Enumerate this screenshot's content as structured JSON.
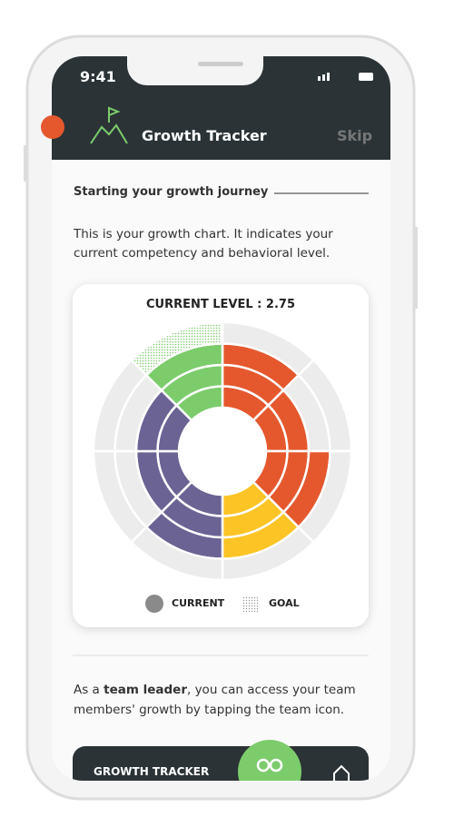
{
  "status": {
    "time": "9:41"
  },
  "header": {
    "title": "Growth Tracker",
    "skip": "Skip"
  },
  "section": {
    "heading": "Starting your growth journey",
    "intro": "This is your growth chart. It indicates your current competency and behavioral level."
  },
  "chart": {
    "title": "CURRENT LEVEL : 2.75",
    "rings": 4,
    "segments": [
      {
        "color": "#e5582e",
        "level": 3
      },
      {
        "color": "#e5582e",
        "level": 2
      },
      {
        "color": "#e5582e",
        "level": 3
      },
      {
        "color": "#fcc425",
        "level": 3
      },
      {
        "color": "#6a6394",
        "level": 3
      },
      {
        "color": "#6a6394",
        "level": 2
      },
      {
        "color": "#6a6394",
        "level": 2
      },
      {
        "color": "#7ccc6c",
        "level": 3,
        "goal": 4
      }
    ],
    "legend": {
      "current": "CURRENT",
      "goal": "GOAL"
    }
  },
  "footer": {
    "before": "As a ",
    "bold": "team leader",
    "after": ", you can access your team members' growth by tapping the team  icon."
  },
  "nav": {
    "label": "GROWTH TRACKER"
  }
}
